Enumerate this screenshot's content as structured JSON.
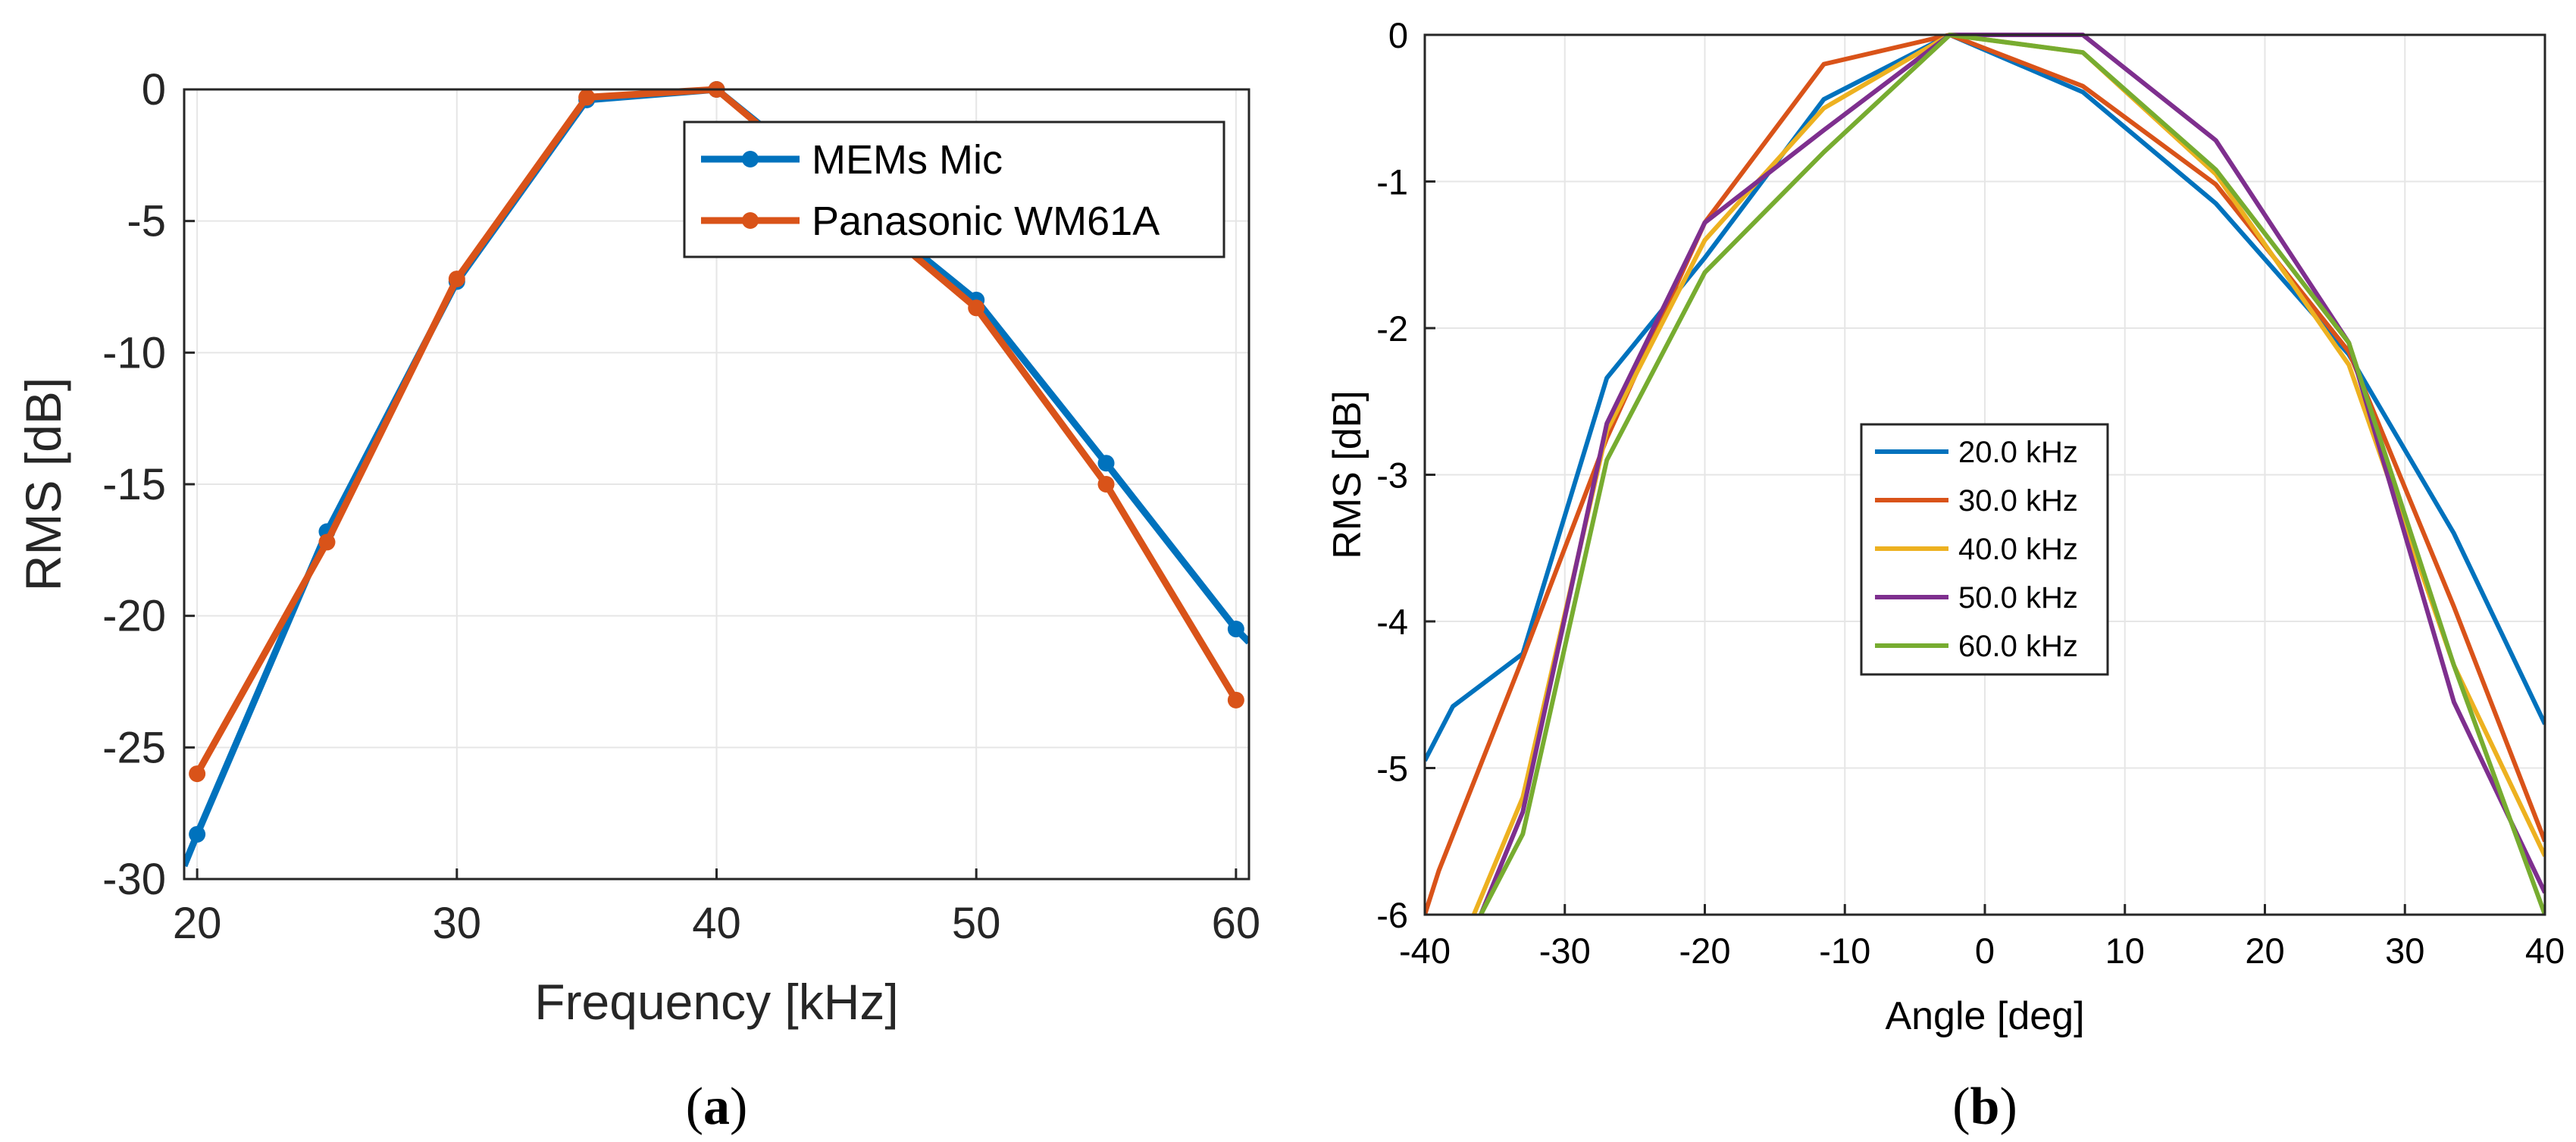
{
  "chart_data": [
    {
      "type": "line",
      "panel_label": "a",
      "xlabel": "Frequency [kHz]",
      "ylabel": "RMS [dB]",
      "xlim": [
        19.5,
        60.5
      ],
      "ylim": [
        -30,
        0
      ],
      "xticks": [
        20,
        30,
        40,
        50,
        60
      ],
      "yticks": [
        0,
        -5,
        -10,
        -15,
        -20,
        -25,
        -30
      ],
      "grid": true,
      "legend": "top-right",
      "x": [
        20,
        25,
        30,
        35,
        40,
        50,
        55,
        60
      ],
      "series": [
        {
          "name": "MEMs Mic",
          "color": "#0072bd",
          "markers": true,
          "values": [
            -28.3,
            -16.8,
            -7.3,
            -0.4,
            0,
            -8.0,
            -14.2,
            -20.5
          ],
          "extrapolated_x": [
            19.5,
            60.5
          ],
          "extrapolated_y": [
            -29.5,
            -21.0
          ]
        },
        {
          "name": "Panasonic WM61A",
          "color": "#d95319",
          "markers": true,
          "values": [
            -26.0,
            -17.2,
            -7.2,
            -0.3,
            0,
            -8.3,
            -15.0,
            -23.2
          ]
        }
      ]
    },
    {
      "type": "line",
      "panel_label": "b",
      "xlabel": "Angle [deg]",
      "ylabel": "RMS [dB]",
      "xlim": [
        -40,
        40
      ],
      "ylim": [
        -6,
        0
      ],
      "xticks": [
        -40,
        -30,
        -20,
        -10,
        0,
        10,
        20,
        30,
        40
      ],
      "yticks": [
        0,
        -1,
        -2,
        -3,
        -4,
        -5,
        -6
      ],
      "grid": true,
      "legend": "center-left",
      "series": [
        {
          "name": "20.0 kHz",
          "color": "#0072bd",
          "x": [
            -40,
            -38,
            -33,
            -27,
            -20,
            -11.5,
            -2.5,
            7,
            16.5,
            26,
            33.5,
            40
          ],
          "y": [
            -4.95,
            -4.58,
            -4.22,
            -2.34,
            -1.52,
            -0.44,
            0,
            -0.39,
            -1.15,
            -2.18,
            -3.4,
            -4.7
          ]
        },
        {
          "name": "30.0 kHz",
          "color": "#d95319",
          "x": [
            -40,
            -39,
            -33,
            -27,
            -20,
            -11.5,
            -2.5,
            7,
            16.5,
            26,
            33.5,
            40
          ],
          "y": [
            -6.0,
            -5.7,
            -4.25,
            -2.75,
            -1.28,
            -0.2,
            0,
            -0.35,
            -1.02,
            -2.16,
            -3.9,
            -5.5
          ]
        },
        {
          "name": "40.0 kHz",
          "color": "#edb120",
          "x": [
            -36.5,
            -33,
            -27,
            -20,
            -11.5,
            -2.5,
            7,
            16.5,
            26,
            33.5,
            40
          ],
          "y": [
            -6.0,
            -5.2,
            -2.7,
            -1.4,
            -0.5,
            0,
            -0.12,
            -0.95,
            -2.25,
            -4.3,
            -5.6
          ]
        },
        {
          "name": "50.0 kHz",
          "color": "#7e2f8e",
          "x": [
            -36,
            -33,
            -27,
            -20,
            -11.5,
            -2.5,
            7,
            16.5,
            26,
            33.5,
            40
          ],
          "y": [
            -6.0,
            -5.3,
            -2.65,
            -1.28,
            -0.65,
            0,
            0,
            -0.72,
            -2.1,
            -4.55,
            -5.85
          ]
        },
        {
          "name": "60.0 kHz",
          "color": "#77ac30",
          "x": [
            -36,
            -33,
            -27,
            -20,
            -11.5,
            -2.5,
            7,
            16.5,
            26,
            33.5,
            40
          ],
          "y": [
            -6.0,
            -5.45,
            -2.9,
            -1.62,
            -0.8,
            0,
            -0.12,
            -0.92,
            -2.1,
            -4.3,
            -6.0
          ]
        }
      ]
    }
  ]
}
